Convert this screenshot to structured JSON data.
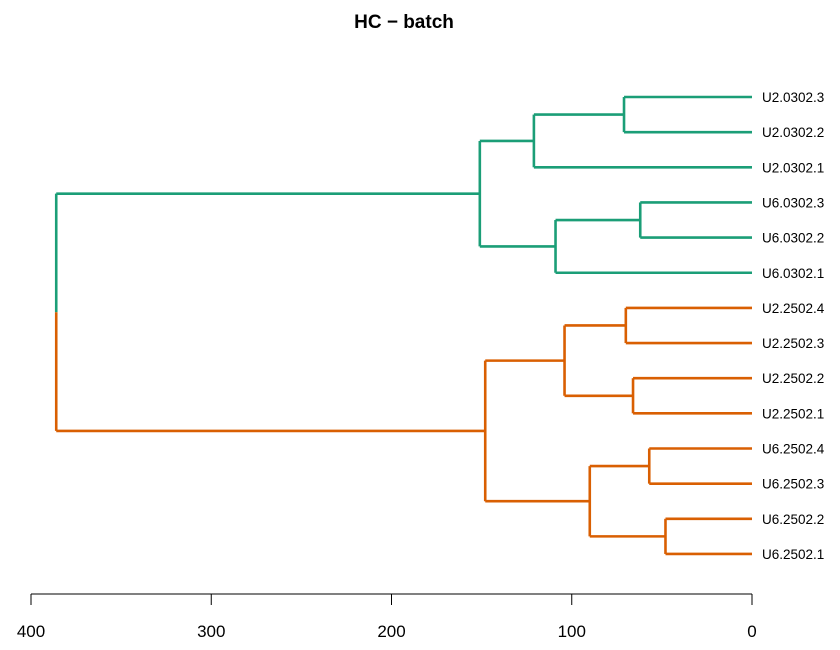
{
  "chart_data": {
    "type": "dendrogram",
    "title": "HC − batch",
    "xlabel": "",
    "ylabel": "",
    "xlim": [
      400,
      0
    ],
    "x_ticks": [
      400,
      300,
      200,
      100,
      0
    ],
    "grid": false,
    "colors": {
      "cluster_1": "#1b9e77",
      "cluster_2": "#d95f02"
    },
    "leaves": [
      "U2.0302.3",
      "U2.0302.2",
      "U2.0302.1",
      "U6.0302.3",
      "U6.0302.2",
      "U6.0302.1",
      "U2.2502.4",
      "U2.2502.3",
      "U2.2502.2",
      "U2.2502.1",
      "U6.2502.4",
      "U6.2502.3",
      "U6.2502.2",
      "U6.2502.1"
    ],
    "merges": [
      {
        "id": "m1",
        "left": "U2.0302.3",
        "right": "U2.0302.2",
        "height": 71,
        "cluster": "cluster_1"
      },
      {
        "id": "m2",
        "left": "m1",
        "right": "U2.0302.1",
        "height": 121,
        "cluster": "cluster_1"
      },
      {
        "id": "m3",
        "left": "U6.0302.3",
        "right": "U6.0302.2",
        "height": 62,
        "cluster": "cluster_1"
      },
      {
        "id": "m4",
        "left": "m3",
        "right": "U6.0302.1",
        "height": 109,
        "cluster": "cluster_1"
      },
      {
        "id": "m5",
        "left": "m2",
        "right": "m4",
        "height": 151,
        "cluster": "cluster_1"
      },
      {
        "id": "m6",
        "left": "U2.2502.4",
        "right": "U2.2502.3",
        "height": 70,
        "cluster": "cluster_2"
      },
      {
        "id": "m7",
        "left": "U2.2502.2",
        "right": "U2.2502.1",
        "height": 66,
        "cluster": "cluster_2"
      },
      {
        "id": "m8",
        "left": "m6",
        "right": "m7",
        "height": 104,
        "cluster": "cluster_2"
      },
      {
        "id": "m9",
        "left": "U6.2502.4",
        "right": "U6.2502.3",
        "height": 57,
        "cluster": "cluster_2"
      },
      {
        "id": "m10",
        "left": "U6.2502.2",
        "right": "U6.2502.1",
        "height": 48,
        "cluster": "cluster_2"
      },
      {
        "id": "m11",
        "left": "m9",
        "right": "m10",
        "height": 90,
        "cluster": "cluster_2"
      },
      {
        "id": "m12",
        "left": "m8",
        "right": "m11",
        "height": 148,
        "cluster": "cluster_2"
      },
      {
        "id": "m13",
        "left": "m5",
        "right": "m12",
        "height": 386,
        "cluster": "root"
      }
    ]
  }
}
